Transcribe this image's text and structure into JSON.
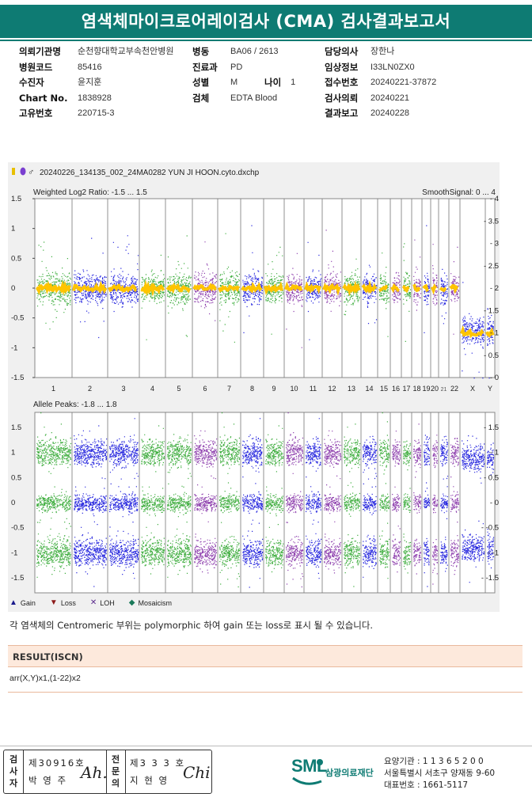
{
  "title": "염색체마이크로어레이검사 (CMA) 검사결과보고서",
  "info": {
    "col1": [
      {
        "label": "의뢰기관명",
        "value": "순천향대학교부속천안병원"
      },
      {
        "label": "병원코드",
        "value": "85416"
      },
      {
        "label": "수진자",
        "value": "윤지훈"
      },
      {
        "label": "Chart No.",
        "value": "1838928"
      },
      {
        "label": "고유번호",
        "value": "220715-3"
      }
    ],
    "col2": [
      {
        "label": "병동",
        "value": "BA06 / 2613"
      },
      {
        "label": "진료과",
        "value": "PD"
      },
      {
        "label": "성별",
        "value": "M"
      },
      {
        "label": "검체",
        "value": "EDTA Blood"
      }
    ],
    "age": {
      "label": "나이",
      "value": "1"
    },
    "col3": [
      {
        "label": "담당의사",
        "value": "장한나"
      },
      {
        "label": "임상정보",
        "value": "I33LN0ZX0"
      },
      {
        "label": "접수번호",
        "value": "20240221-37872"
      },
      {
        "label": "검사의뢰",
        "value": "20240221"
      },
      {
        "label": "결과보고",
        "value": "20240228"
      }
    ]
  },
  "panel": {
    "file_name": "20240226_134135_002_24MA0282 YUN JI HOON.cyto.dxchp",
    "top_left_label": "Weighted Log2 Ratio: -1.5 ... 1.5",
    "top_right_label": "SmoothSignal: 0 ... 4",
    "bottom_label": "Allele Peaks: -1.8 ... 1.8"
  },
  "chart_data": [
    {
      "type": "scatter",
      "title": "Weighted Log2 Ratio: -1.5 ... 1.5",
      "ylim": [
        -1.5,
        1.5
      ],
      "y2lim": [
        0,
        4
      ],
      "yticks": [
        "1.5",
        "1",
        "0.5",
        "0",
        "-0.5",
        "-1",
        "-1.5"
      ],
      "y2ticks": [
        "4",
        "3.5",
        "3",
        "2.5",
        "2",
        "1.5",
        "1",
        "0.5",
        "0"
      ],
      "categories": [
        "1",
        "2",
        "3",
        "4",
        "5",
        "6",
        "7",
        "8",
        "9",
        "10",
        "11",
        "12",
        "13",
        "14",
        "15",
        "16",
        "17",
        "18",
        "19",
        "20",
        "21",
        "22",
        "X",
        "Y"
      ],
      "smooth_signal": [
        2,
        2,
        2,
        2,
        2,
        2,
        2,
        2,
        2,
        2,
        2,
        2,
        2,
        2,
        2,
        2,
        2,
        2,
        2,
        2,
        2,
        2,
        1,
        1
      ],
      "log2_ratio_mean": [
        0,
        0,
        0,
        0,
        0,
        0,
        0,
        0,
        0,
        0,
        0,
        0,
        0,
        0,
        0,
        0,
        0,
        0,
        0,
        0,
        0,
        0,
        -0.7,
        -0.7
      ],
      "series_colors": [
        "#1fa01f",
        "#0000d8",
        "#7a1fa0"
      ],
      "smooth_color": "#ffc400"
    },
    {
      "type": "scatter",
      "title": "Allele Peaks: -1.8 ... 1.8",
      "ylim": [
        -1.8,
        1.8
      ],
      "yticks": [
        "1.5",
        "1",
        "0.5",
        "0",
        "-0.5",
        "-1",
        "-1.5"
      ],
      "categories": [
        "1",
        "2",
        "3",
        "4",
        "5",
        "6",
        "7",
        "8",
        "9",
        "10",
        "11",
        "12",
        "13",
        "14",
        "15",
        "16",
        "17",
        "18",
        "19",
        "20",
        "21",
        "22",
        "X",
        "Y"
      ],
      "peaks_autosomes": [
        1,
        0,
        -1
      ],
      "peaks_X": [
        0.9,
        -0.9
      ]
    }
  ],
  "chrom_labels": [
    "1",
    "2",
    "3",
    "4",
    "5",
    "6",
    "7",
    "8",
    "9",
    "10",
    "11",
    "12",
    "13",
    "14",
    "15",
    "16",
    "17",
    "18",
    "19",
    "20",
    "",
    "22",
    "X",
    "Y"
  ],
  "legend": [
    {
      "label": "Gain",
      "icon": "gain-triangle-up",
      "color": "#1a1a8c"
    },
    {
      "label": "Loss",
      "icon": "loss-triangle-down",
      "color": "#8c1a1a"
    },
    {
      "label": "LOH",
      "icon": "loh-x",
      "color": "#5a2a8c"
    },
    {
      "label": "Mosaicism",
      "icon": "mosaic-diamond",
      "color": "#1a7a5a"
    }
  ],
  "note": "각 염색체의 Centromeric 부위는 polymorphic 하여 gain 또는 loss로 표시 될 수 있습니다.",
  "result": {
    "heading": "RESULT(ISCN)",
    "value": "arr(X,Y)x1,(1-22)x2"
  },
  "signatures": {
    "label1": "검사자",
    "license1": "제30916호",
    "name1": "박 영 주",
    "label2": "전문의",
    "license2": "제3 3 3 호",
    "name2": "지 현 영"
  },
  "org": {
    "logo": "SML",
    "name": "삼광의료재단",
    "lines": [
      "요양기관 : 1 1 3 6 5 2 0 0",
      "서울특별시 서초구 양재동 9-60",
      "대표번호 : 1661-5117"
    ]
  }
}
